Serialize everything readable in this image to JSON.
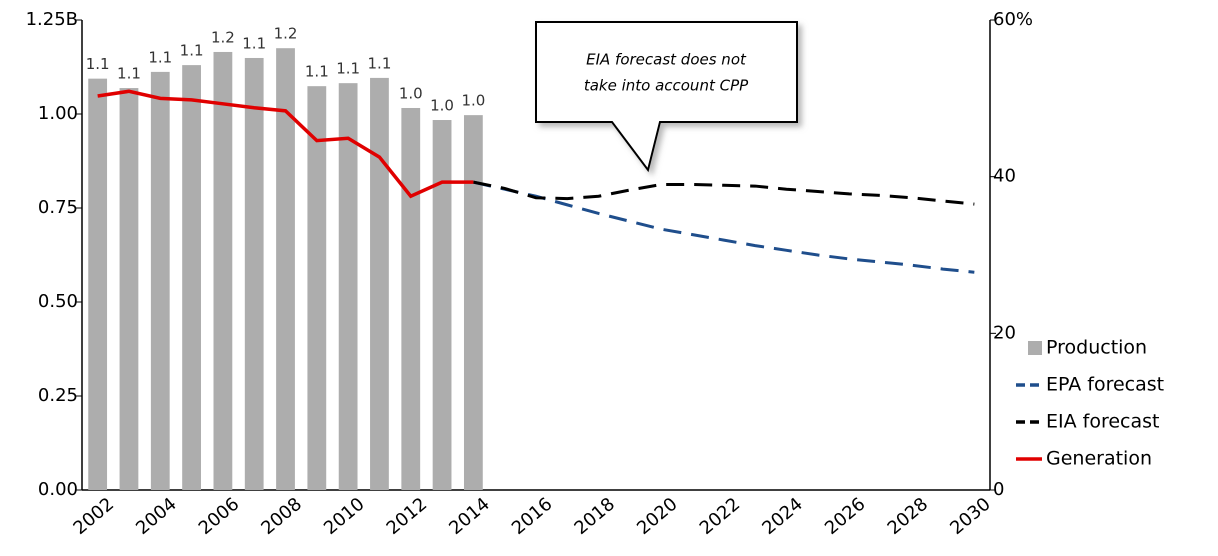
{
  "chart_data": {
    "type": "combo",
    "categories": [
      "2002",
      null,
      "2004",
      null,
      "2006",
      null,
      "2008",
      null,
      "2010",
      null,
      "2012",
      null,
      "2014",
      null,
      "2016",
      null,
      "2018",
      null,
      "2020",
      null,
      "2022",
      null,
      "2024",
      null,
      "2026",
      null,
      "2028",
      null,
      "2030"
    ],
    "ylim": [
      0,
      1.25
    ],
    "yticks": [
      {
        "value": 0,
        "label": "0.00"
      },
      {
        "value": 0.25,
        "label": "0.25"
      },
      {
        "value": 0.5,
        "label": "0.50"
      },
      {
        "value": 0.75,
        "label": "0.75"
      },
      {
        "value": 1,
        "label": "1.00"
      },
      {
        "value": 1.25,
        "label": "1.25B"
      }
    ],
    "y2lim": [
      0,
      60
    ],
    "y2ticks": [
      0,
      20,
      40,
      {
        "value": 60,
        "label": "60%"
      }
    ],
    "legend": "right",
    "annotation_lines": [
      "EIA forecast does not",
      "take into account CPP"
    ],
    "series": [
      {
        "name": "Production",
        "type": "bar",
        "color": "#adadad",
        "values": [
          1.094,
          1.069,
          1.112,
          1.13,
          1.165,
          1.149,
          1.175,
          1.074,
          1.082,
          1.096,
          1.016,
          0.984,
          0.997,
          null,
          null,
          null,
          null,
          null,
          null,
          null,
          null,
          null,
          null,
          null,
          null,
          null,
          null,
          null,
          null
        ],
        "value_labels": [
          "1.1",
          "1.1",
          "1.1",
          "1.1",
          "1.2",
          "1.1",
          "1.2",
          "1.1",
          "1.1",
          "1.1",
          "1.0",
          "1.0",
          "1.0",
          null,
          null,
          null,
          null,
          null,
          null,
          null,
          null,
          null,
          null,
          null,
          null,
          null,
          null,
          null,
          null
        ]
      },
      {
        "name": "EPA forecast",
        "type": "line",
        "axis": "y2",
        "color": "#1f4e8c",
        "line_style": "dashed",
        "values": [
          null,
          null,
          null,
          null,
          null,
          null,
          null,
          null,
          null,
          null,
          null,
          null,
          39.3,
          38.4,
          37.5,
          36.4,
          35.3,
          34.3,
          33.3,
          32.6,
          31.9,
          31.2,
          30.6,
          30.0,
          29.5,
          29.1,
          28.7,
          28.2,
          27.8
        ]
      },
      {
        "name": "EIA forecast",
        "type": "line",
        "axis": "y2",
        "color": "#000000",
        "line_style": "dashed",
        "values": [
          null,
          null,
          null,
          null,
          null,
          null,
          null,
          null,
          null,
          null,
          null,
          null,
          39.3,
          38.5,
          37.3,
          37.2,
          37.5,
          38.3,
          39.0,
          39.0,
          38.9,
          38.8,
          38.4,
          38.1,
          37.8,
          37.6,
          37.3,
          36.9,
          36.5
        ]
      },
      {
        "name": "Generation",
        "type": "line",
        "axis": "y2",
        "color": "#e00000",
        "line_style": "solid",
        "values": [
          50.3,
          50.9,
          50.0,
          49.8,
          49.3,
          48.8,
          48.4,
          44.6,
          44.9,
          42.5,
          37.5,
          39.3,
          39.3,
          null,
          null,
          null,
          null,
          null,
          null,
          null,
          null,
          null,
          null,
          null,
          null,
          null,
          null,
          null,
          null
        ]
      }
    ]
  }
}
